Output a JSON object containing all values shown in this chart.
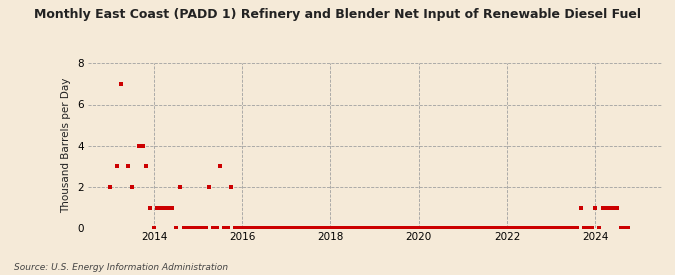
{
  "title": "Monthly East Coast (PADD 1) Refinery and Blender Net Input of Renewable Diesel Fuel",
  "ylabel": "Thousand Barrels per Day",
  "source": "Source: U.S. Energy Information Administration",
  "background_color": "#f5ead8",
  "plot_background_color": "#f5ead8",
  "dot_color": "#cc0000",
  "dot_size": 5,
  "ylim": [
    0,
    8
  ],
  "yticks": [
    0,
    2,
    4,
    6,
    8
  ],
  "data_points": [
    [
      2013.0,
      2.0
    ],
    [
      2013.17,
      3.0
    ],
    [
      2013.25,
      7.0
    ],
    [
      2013.42,
      3.0
    ],
    [
      2013.5,
      2.0
    ],
    [
      2013.67,
      4.0
    ],
    [
      2013.75,
      4.0
    ],
    [
      2013.83,
      3.0
    ],
    [
      2013.92,
      1.0
    ],
    [
      2014.0,
      0.0
    ],
    [
      2014.08,
      1.0
    ],
    [
      2014.17,
      1.0
    ],
    [
      2014.25,
      1.0
    ],
    [
      2014.33,
      1.0
    ],
    [
      2014.42,
      1.0
    ],
    [
      2014.5,
      0.0
    ],
    [
      2014.58,
      2.0
    ],
    [
      2014.67,
      0.0
    ],
    [
      2014.75,
      0.0
    ],
    [
      2014.83,
      0.0
    ],
    [
      2014.92,
      0.0
    ],
    [
      2015.0,
      0.0
    ],
    [
      2015.08,
      0.0
    ],
    [
      2015.17,
      0.0
    ],
    [
      2015.25,
      2.0
    ],
    [
      2015.33,
      0.0
    ],
    [
      2015.42,
      0.0
    ],
    [
      2015.5,
      3.0
    ],
    [
      2015.58,
      0.0
    ],
    [
      2015.67,
      0.0
    ],
    [
      2015.75,
      2.0
    ],
    [
      2015.83,
      0.0
    ],
    [
      2015.92,
      0.0
    ],
    [
      2016.0,
      0.0
    ],
    [
      2016.08,
      0.0
    ],
    [
      2016.17,
      0.0
    ],
    [
      2016.25,
      0.0
    ],
    [
      2016.33,
      0.0
    ],
    [
      2016.42,
      0.0
    ],
    [
      2016.5,
      0.0
    ],
    [
      2016.58,
      0.0
    ],
    [
      2016.67,
      0.0
    ],
    [
      2016.75,
      0.0
    ],
    [
      2016.83,
      0.0
    ],
    [
      2016.92,
      0.0
    ],
    [
      2017.0,
      0.0
    ],
    [
      2017.08,
      0.0
    ],
    [
      2017.17,
      0.0
    ],
    [
      2017.25,
      0.0
    ],
    [
      2017.33,
      0.0
    ],
    [
      2017.42,
      0.0
    ],
    [
      2017.5,
      0.0
    ],
    [
      2017.58,
      0.0
    ],
    [
      2017.67,
      0.0
    ],
    [
      2017.75,
      0.0
    ],
    [
      2017.83,
      0.0
    ],
    [
      2017.92,
      0.0
    ],
    [
      2018.0,
      0.0
    ],
    [
      2018.08,
      0.0
    ],
    [
      2018.17,
      0.0
    ],
    [
      2018.25,
      0.0
    ],
    [
      2018.33,
      0.0
    ],
    [
      2018.42,
      0.0
    ],
    [
      2018.5,
      0.0
    ],
    [
      2018.58,
      0.0
    ],
    [
      2018.67,
      0.0
    ],
    [
      2018.75,
      0.0
    ],
    [
      2018.83,
      0.0
    ],
    [
      2018.92,
      0.0
    ],
    [
      2019.0,
      0.0
    ],
    [
      2019.08,
      0.0
    ],
    [
      2019.17,
      0.0
    ],
    [
      2019.25,
      0.0
    ],
    [
      2019.33,
      0.0
    ],
    [
      2019.42,
      0.0
    ],
    [
      2019.5,
      0.0
    ],
    [
      2019.58,
      0.0
    ],
    [
      2019.67,
      0.0
    ],
    [
      2019.75,
      0.0
    ],
    [
      2019.83,
      0.0
    ],
    [
      2019.92,
      0.0
    ],
    [
      2020.0,
      0.0
    ],
    [
      2020.08,
      0.0
    ],
    [
      2020.17,
      0.0
    ],
    [
      2020.25,
      0.0
    ],
    [
      2020.33,
      0.0
    ],
    [
      2020.42,
      0.0
    ],
    [
      2020.5,
      0.0
    ],
    [
      2020.58,
      0.0
    ],
    [
      2020.67,
      0.0
    ],
    [
      2020.75,
      0.0
    ],
    [
      2020.83,
      0.0
    ],
    [
      2020.92,
      0.0
    ],
    [
      2021.0,
      0.0
    ],
    [
      2021.08,
      0.0
    ],
    [
      2021.17,
      0.0
    ],
    [
      2021.25,
      0.0
    ],
    [
      2021.33,
      0.0
    ],
    [
      2021.42,
      0.0
    ],
    [
      2021.5,
      0.0
    ],
    [
      2021.58,
      0.0
    ],
    [
      2021.67,
      0.0
    ],
    [
      2021.75,
      0.0
    ],
    [
      2021.83,
      0.0
    ],
    [
      2021.92,
      0.0
    ],
    [
      2022.0,
      0.0
    ],
    [
      2022.08,
      0.0
    ],
    [
      2022.17,
      0.0
    ],
    [
      2022.25,
      0.0
    ],
    [
      2022.33,
      0.0
    ],
    [
      2022.42,
      0.0
    ],
    [
      2022.5,
      0.0
    ],
    [
      2022.58,
      0.0
    ],
    [
      2022.67,
      0.0
    ],
    [
      2022.75,
      0.0
    ],
    [
      2022.83,
      0.0
    ],
    [
      2022.92,
      0.0
    ],
    [
      2023.0,
      0.0
    ],
    [
      2023.08,
      0.0
    ],
    [
      2023.17,
      0.0
    ],
    [
      2023.25,
      0.0
    ],
    [
      2023.33,
      0.0
    ],
    [
      2023.42,
      0.0
    ],
    [
      2023.5,
      0.0
    ],
    [
      2023.58,
      0.0
    ],
    [
      2023.67,
      1.0
    ],
    [
      2023.75,
      0.0
    ],
    [
      2023.83,
      0.0
    ],
    [
      2023.92,
      0.0
    ],
    [
      2024.0,
      1.0
    ],
    [
      2024.08,
      0.0
    ],
    [
      2024.17,
      1.0
    ],
    [
      2024.25,
      1.0
    ],
    [
      2024.33,
      1.0
    ],
    [
      2024.42,
      1.0
    ],
    [
      2024.5,
      1.0
    ],
    [
      2024.58,
      0.0
    ],
    [
      2024.67,
      0.0
    ],
    [
      2024.75,
      0.0
    ]
  ],
  "xmin": 2012.5,
  "xmax": 2025.5,
  "xtick_years": [
    2014,
    2016,
    2018,
    2020,
    2022,
    2024
  ]
}
